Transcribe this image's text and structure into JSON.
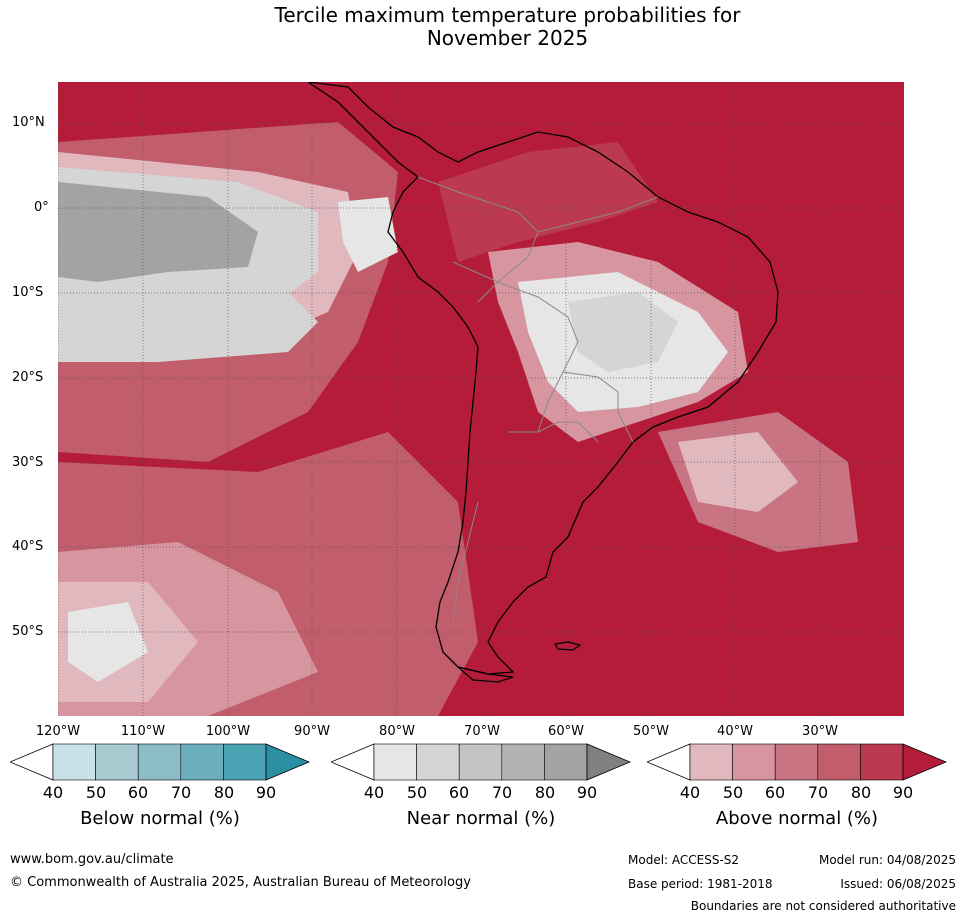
{
  "title": {
    "line1": "Tercile maximum temperature probabilities for",
    "line2": "November 2025"
  },
  "map": {
    "lat_labels": [
      "10°N",
      "0°",
      "10°S",
      "20°S",
      "30°S",
      "40°S",
      "50°S"
    ],
    "lon_labels": [
      "120°W",
      "110°W",
      "100°W",
      "90°W",
      "80°W",
      "70°W",
      "60°W",
      "50°W",
      "40°W",
      "30°W"
    ]
  },
  "colorbars": [
    {
      "title": "Below normal (%)",
      "ticks": [
        "40",
        "50",
        "60",
        "70",
        "80",
        "90"
      ],
      "colors": [
        "#ffffff",
        "#c9e2e8",
        "#a8cbd2",
        "#8bbcc7",
        "#6bafbe",
        "#4aa2b3",
        "#2a8fa3"
      ]
    },
    {
      "title": "Near normal (%)",
      "ticks": [
        "40",
        "50",
        "60",
        "70",
        "80",
        "90"
      ],
      "colors": [
        "#ffffff",
        "#e6e6e6",
        "#d5d5d5",
        "#c4c4c4",
        "#b3b3b3",
        "#a3a3a3",
        "#808080"
      ]
    },
    {
      "title": "Above normal (%)",
      "ticks": [
        "40",
        "50",
        "60",
        "70",
        "80",
        "90"
      ],
      "colors": [
        "#ffffff",
        "#e2b8bf",
        "#d6959f",
        "#c97482",
        "#c25d6c",
        "#bb3a4f",
        "#b51c3a"
      ]
    }
  ],
  "footer": {
    "website": "www.bom.gov.au/climate",
    "copyright": "© Commonwealth of Australia 2025, Australian Bureau of Meteorology",
    "model": "Model: ACCESS-S2",
    "model_run": "Model run: 04/08/2025",
    "base_period": "Base period: 1981-2018",
    "issued": "Issued: 06/08/2025",
    "disclaimer": "Boundaries are not considered authoritative"
  }
}
